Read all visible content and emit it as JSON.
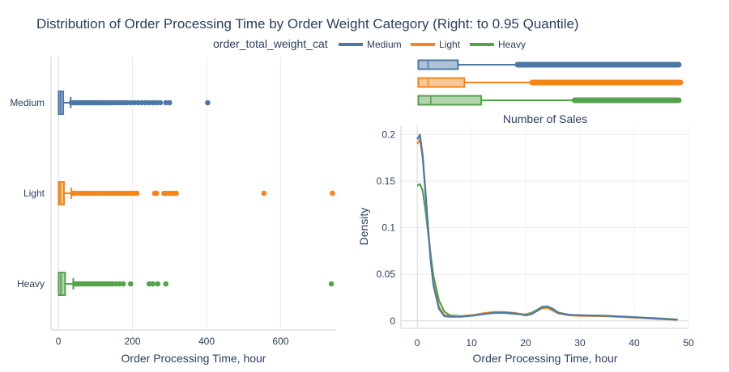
{
  "title": "Distribution of Order Processing Time by Order Weight Category (Right: to 0.95 Quantile)",
  "legend": {
    "title": "order_total_weight_cat",
    "position": "top",
    "items": [
      {
        "name": "Medium",
        "color": "#4c78a8"
      },
      {
        "name": "Light",
        "color": "#f58518"
      },
      {
        "name": "Heavy",
        "color": "#54a24b"
      }
    ]
  },
  "chart_data": [
    {
      "type": "box",
      "orientation": "horizontal",
      "xlabel": "Order Processing Time, hour",
      "ylabel": "",
      "xlim": [
        -20,
        750
      ],
      "xticks": [
        0,
        200,
        400,
        600
      ],
      "grid": true,
      "categories": [
        "Medium",
        "Light",
        "Heavy"
      ],
      "series": [
        {
          "name": "Medium",
          "color": "#4c78a8",
          "q1": 0.5,
          "median": 6,
          "q3": 13,
          "whisker_low": 0,
          "whisker_high": 33,
          "outliers": [
            35,
            40,
            45,
            50,
            55,
            60,
            65,
            70,
            75,
            80,
            85,
            90,
            95,
            100,
            105,
            110,
            115,
            120,
            125,
            130,
            135,
            140,
            148,
            155,
            162,
            170,
            178,
            185,
            195,
            205,
            215,
            225,
            235,
            245,
            255,
            265,
            275,
            290,
            300,
            403
          ]
        },
        {
          "name": "Light",
          "color": "#f58518",
          "q1": 0.5,
          "median": 5,
          "q3": 15,
          "whisker_low": 0,
          "whisker_high": 35,
          "outliers": [
            38,
            45,
            52,
            60,
            68,
            76,
            84,
            92,
            100,
            108,
            116,
            124,
            132,
            140,
            148,
            156,
            164,
            172,
            180,
            188,
            196,
            205,
            212,
            260,
            265,
            285,
            290,
            298,
            305,
            312,
            318,
            555,
            740
          ]
        },
        {
          "name": "Heavy",
          "color": "#54a24b",
          "q1": 0.5,
          "median": 7,
          "q3": 18,
          "whisker_low": 0,
          "whisker_high": 40,
          "outliers": [
            44,
            50,
            56,
            62,
            68,
            74,
            80,
            86,
            92,
            98,
            104,
            110,
            116,
            122,
            128,
            134,
            140,
            146,
            155,
            165,
            175,
            195,
            245,
            255,
            268,
            290,
            737
          ]
        }
      ]
    },
    {
      "type": "box",
      "orientation": "horizontal",
      "xlim": [
        -3,
        50
      ],
      "categories": [
        "Medium",
        "Light",
        "Heavy"
      ],
      "series": [
        {
          "name": "Medium",
          "color": "#4c78a8",
          "q1": 0.2,
          "median": 2,
          "q3": 7.5,
          "whisker_low": 0,
          "whisker_high": 18.5,
          "outlier_start": 18.5,
          "outlier_end": 48.2
        },
        {
          "name": "Light",
          "color": "#f58518",
          "q1": 0.2,
          "median": 2,
          "q3": 8.7,
          "whisker_low": 0,
          "whisker_high": 21.2,
          "outlier_start": 21.2,
          "outlier_end": 48.5
        },
        {
          "name": "Heavy",
          "color": "#54a24b",
          "q1": 0.2,
          "median": 2.5,
          "q3": 11.8,
          "whisker_low": 0,
          "whisker_high": 29,
          "outlier_start": 29,
          "outlier_end": 48.2
        }
      ]
    },
    {
      "type": "line",
      "title": "Number of Sales",
      "xlabel": "Order Processing Time, hour",
      "ylabel": "Density",
      "xlim": [
        -3,
        50
      ],
      "ylim": [
        -0.008,
        0.21
      ],
      "xticks": [
        0,
        10,
        20,
        30,
        40,
        50
      ],
      "yticks": [
        0,
        0.05,
        0.1,
        0.15,
        0.2
      ],
      "grid": true,
      "series": [
        {
          "name": "Heavy",
          "color": "#54a24b",
          "x": [
            0,
            0.5,
            1,
            1.5,
            2,
            2.5,
            3,
            4,
            5,
            6,
            8,
            10,
            12,
            14,
            16,
            18,
            20,
            21,
            22,
            23,
            24,
            25,
            26,
            28,
            30,
            35,
            40,
            45,
            48
          ],
          "y": [
            0.145,
            0.147,
            0.14,
            0.12,
            0.095,
            0.07,
            0.048,
            0.022,
            0.01,
            0.006,
            0.005,
            0.006,
            0.0075,
            0.0085,
            0.0085,
            0.0075,
            0.007,
            0.0085,
            0.0115,
            0.015,
            0.0155,
            0.013,
            0.009,
            0.0065,
            0.006,
            0.005,
            0.004,
            0.0025,
            0.0015
          ]
        },
        {
          "name": "Light",
          "color": "#f58518",
          "x": [
            0,
            0.5,
            1,
            1.5,
            2,
            2.5,
            3,
            4,
            5,
            6,
            8,
            10,
            12,
            14,
            16,
            18,
            20,
            21,
            22,
            23,
            24,
            25,
            26,
            28,
            30,
            35,
            40,
            45,
            48
          ],
          "y": [
            0.19,
            0.195,
            0.175,
            0.14,
            0.1,
            0.065,
            0.04,
            0.015,
            0.006,
            0.005,
            0.005,
            0.006,
            0.008,
            0.0095,
            0.0095,
            0.0085,
            0.0065,
            0.0075,
            0.0105,
            0.0135,
            0.014,
            0.011,
            0.008,
            0.006,
            0.0055,
            0.005,
            0.0035,
            0.002,
            0.0012
          ]
        },
        {
          "name": "Medium",
          "color": "#4c78a8",
          "x": [
            0,
            0.5,
            1,
            1.5,
            2,
            2.5,
            3,
            4,
            5,
            6,
            8,
            10,
            12,
            14,
            16,
            18,
            20,
            21,
            22,
            23,
            24,
            25,
            26,
            28,
            30,
            35,
            40,
            45,
            48
          ],
          "y": [
            0.195,
            0.2,
            0.178,
            0.14,
            0.1,
            0.064,
            0.038,
            0.013,
            0.005,
            0.0045,
            0.0045,
            0.0055,
            0.007,
            0.0085,
            0.009,
            0.008,
            0.006,
            0.007,
            0.0105,
            0.0145,
            0.0155,
            0.0125,
            0.0085,
            0.0065,
            0.006,
            0.0055,
            0.004,
            0.0022,
            0.0012
          ]
        }
      ]
    }
  ]
}
